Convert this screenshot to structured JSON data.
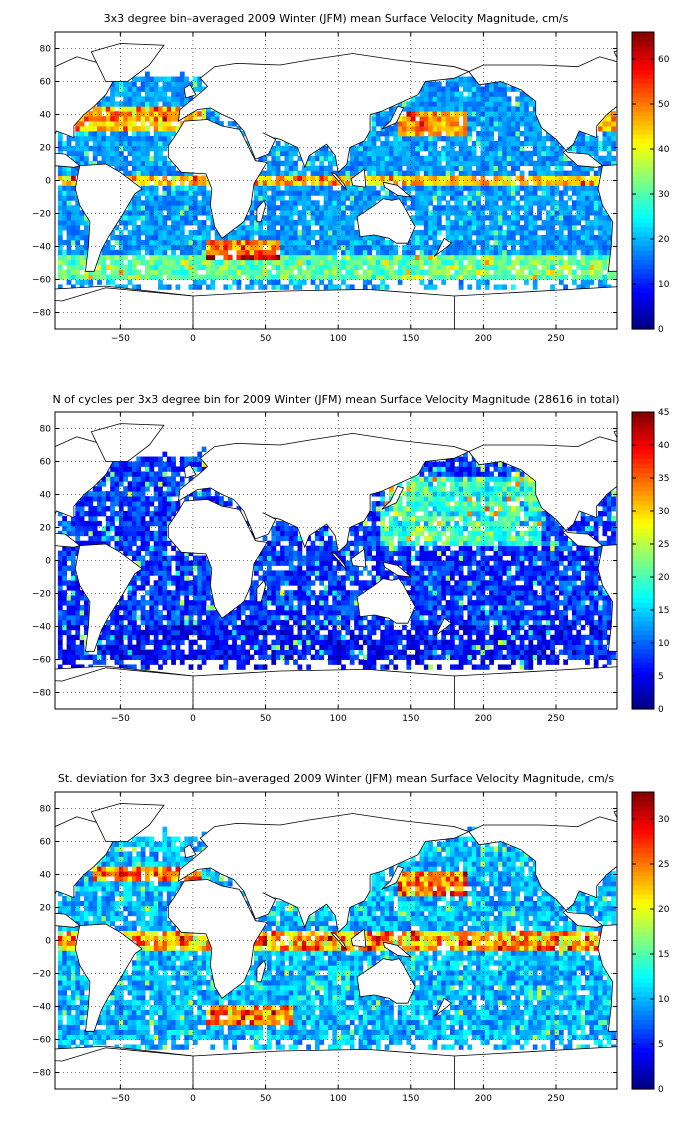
{
  "chart_data": [
    {
      "type": "heatmap",
      "title": "3x3 degree bin–averaged 2009 Winter (JFM) mean Surface Velocity Magnitude, cm/s",
      "xlim": [
        -95,
        292
      ],
      "ylim": [
        -90,
        90
      ],
      "x_ticks": [
        -50,
        0,
        50,
        100,
        150,
        200,
        250
      ],
      "y_ticks": [
        80,
        60,
        40,
        20,
        0,
        -20,
        -40,
        -60,
        -80
      ],
      "x_tick_labels": [
        "−50",
        "0",
        "50",
        "100",
        "150",
        "200",
        "250"
      ],
      "y_tick_labels": [
        "80",
        "60",
        "40",
        "20",
        "0",
        "−20",
        "−40",
        "−60",
        "−80"
      ],
      "bin_size_deg": 3,
      "grid": "dotted",
      "colormap": "jet",
      "colorbar": {
        "range": [
          0,
          66
        ],
        "ticks": [
          0,
          10,
          20,
          30,
          40,
          50,
          60
        ],
        "tick_labels": [
          "0",
          "10",
          "20",
          "30",
          "40",
          "50",
          "60"
        ]
      },
      "field": "speed",
      "seed": 11
    },
    {
      "type": "heatmap",
      "title": "N of cycles per 3x3 degree bin for 2009 Winter (JFM) mean Surface Velocity Magnitude (28616 in total)",
      "xlim": [
        -95,
        292
      ],
      "ylim": [
        -90,
        90
      ],
      "x_ticks": [
        -50,
        0,
        50,
        100,
        150,
        200,
        250
      ],
      "y_ticks": [
        80,
        60,
        40,
        20,
        0,
        -20,
        -40,
        -60,
        -80
      ],
      "x_tick_labels": [
        "−50",
        "0",
        "50",
        "100",
        "150",
        "200",
        "250"
      ],
      "y_tick_labels": [
        "80",
        "60",
        "40",
        "20",
        "0",
        "−20",
        "−40",
        "−60",
        "−80"
      ],
      "bin_size_deg": 3,
      "grid": "dotted",
      "colormap": "jet",
      "colorbar": {
        "range": [
          0,
          45
        ],
        "ticks": [
          0,
          5,
          10,
          15,
          20,
          25,
          30,
          35,
          40,
          45
        ],
        "tick_labels": [
          "0",
          "5",
          "10",
          "15",
          "20",
          "25",
          "30",
          "35",
          "40",
          "45"
        ]
      },
      "field": "count",
      "seed": 23
    },
    {
      "type": "heatmap",
      "title": "St. deviation for 3x3 degree bin–averaged 2009 Winter (JFM) mean Surface Velocity Magnitude, cm/s",
      "xlim": [
        -95,
        292
      ],
      "ylim": [
        -90,
        90
      ],
      "x_ticks": [
        -50,
        0,
        50,
        100,
        150,
        200,
        250
      ],
      "y_ticks": [
        80,
        60,
        40,
        20,
        0,
        -20,
        -40,
        -60,
        -80
      ],
      "x_tick_labels": [
        "−50",
        "0",
        "50",
        "100",
        "150",
        "200",
        "250"
      ],
      "y_tick_labels": [
        "80",
        "60",
        "40",
        "20",
        "0",
        "−20",
        "−40",
        "−60",
        "−80"
      ],
      "bin_size_deg": 3,
      "grid": "dotted",
      "colormap": "jet",
      "colorbar": {
        "range": [
          0,
          33
        ],
        "ticks": [
          0,
          5,
          10,
          15,
          20,
          25,
          30
        ],
        "tick_labels": [
          "0",
          "5",
          "10",
          "15",
          "20",
          "25",
          "30"
        ]
      },
      "field": "std",
      "seed": 37
    }
  ]
}
